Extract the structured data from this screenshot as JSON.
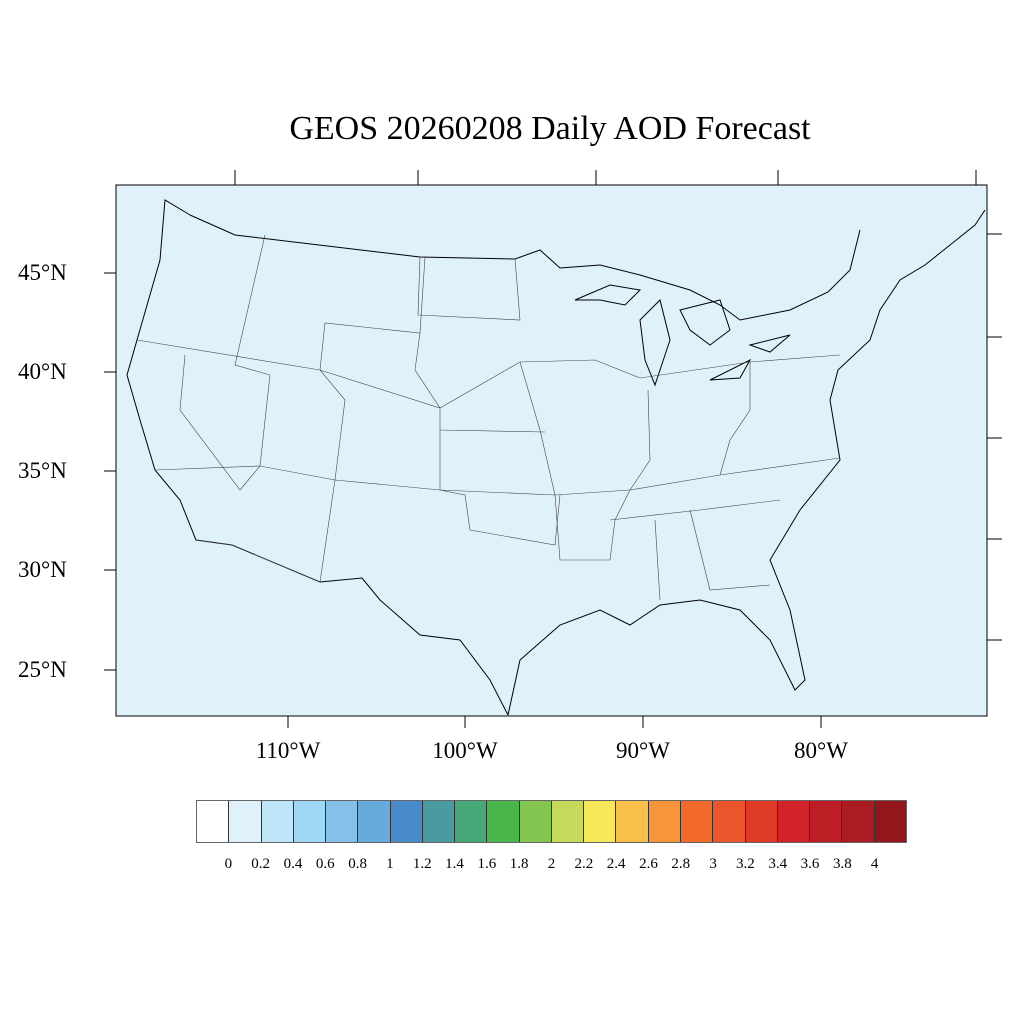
{
  "title": "GEOS 20260208 Daily AOD Forecast",
  "map": {
    "region": "Contiguous United States",
    "background_color": "#dff2fb",
    "lat_labels": [
      "25°N",
      "30°N",
      "35°N",
      "40°N",
      "45°N"
    ],
    "lon_labels": [
      "110°W",
      "100°W",
      "90°W",
      "80°W"
    ]
  },
  "colorbar": {
    "labels": [
      "0",
      "0.2",
      "0.4",
      "0.6",
      "0.8",
      "1",
      "1.2",
      "1.4",
      "1.6",
      "1.8",
      "2",
      "2.2",
      "2.4",
      "2.6",
      "2.8",
      "3",
      "3.2",
      "3.4",
      "3.6",
      "3.8",
      "4"
    ],
    "colors": [
      "#ffffff",
      "#dff2fb",
      "#bfe6f8",
      "#9ed8f5",
      "#84c0e8",
      "#68a9dc",
      "#4a8ac8",
      "#4a9ba0",
      "#47a877",
      "#4ab54a",
      "#84c54f",
      "#c6d95a",
      "#f7e85a",
      "#f8bf4a",
      "#f7953a",
      "#f46a2c",
      "#ea552b",
      "#e03b28",
      "#d2222a",
      "#bd1e25",
      "#a91c22",
      "#92161c"
    ]
  }
}
